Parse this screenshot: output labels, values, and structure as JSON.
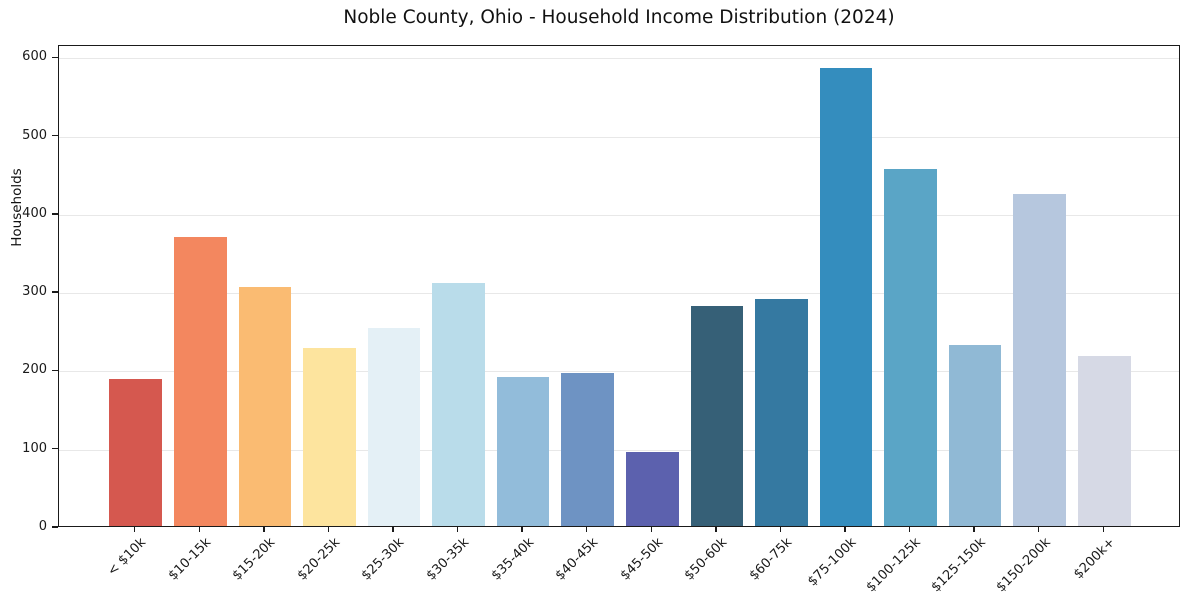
{
  "chart_data": {
    "type": "bar",
    "title": "Noble County, Ohio - Household Income Distribution (2024)",
    "ylabel": "Households",
    "categories": [
      "< $10k",
      "$10-15k",
      "$15-20k",
      "$20-25k",
      "$25-30k",
      "$30-35k",
      "$35-40k",
      "$40-45k",
      "$45-50k",
      "$50-60k",
      "$60-75k",
      "$75-100k",
      "$100-125k",
      "$125-150k",
      "$150-200k",
      "$200k+"
    ],
    "values": [
      188,
      369,
      305,
      228,
      253,
      310,
      190,
      195,
      95,
      281,
      290,
      585,
      456,
      231,
      424,
      217
    ],
    "bar_colors": [
      "#d5584f",
      "#f3875f",
      "#fabb72",
      "#fde49e",
      "#e4f0f6",
      "#b9dcea",
      "#92bcda",
      "#6e93c3",
      "#5c61ae",
      "#366077",
      "#3579a1",
      "#348dbe",
      "#5aa5c6",
      "#90b9d5",
      "#b6c7de",
      "#d6d9e5"
    ],
    "yticks": [
      0,
      100,
      200,
      300,
      400,
      500,
      600
    ],
    "ylim": [
      0,
      616
    ],
    "grid": "horizontal",
    "gridline_color": "#e8e8e8",
    "spine_color": "#1a1a1a",
    "background_color": "#ffffff",
    "x_tick_rotation": 45,
    "legend": "none"
  }
}
